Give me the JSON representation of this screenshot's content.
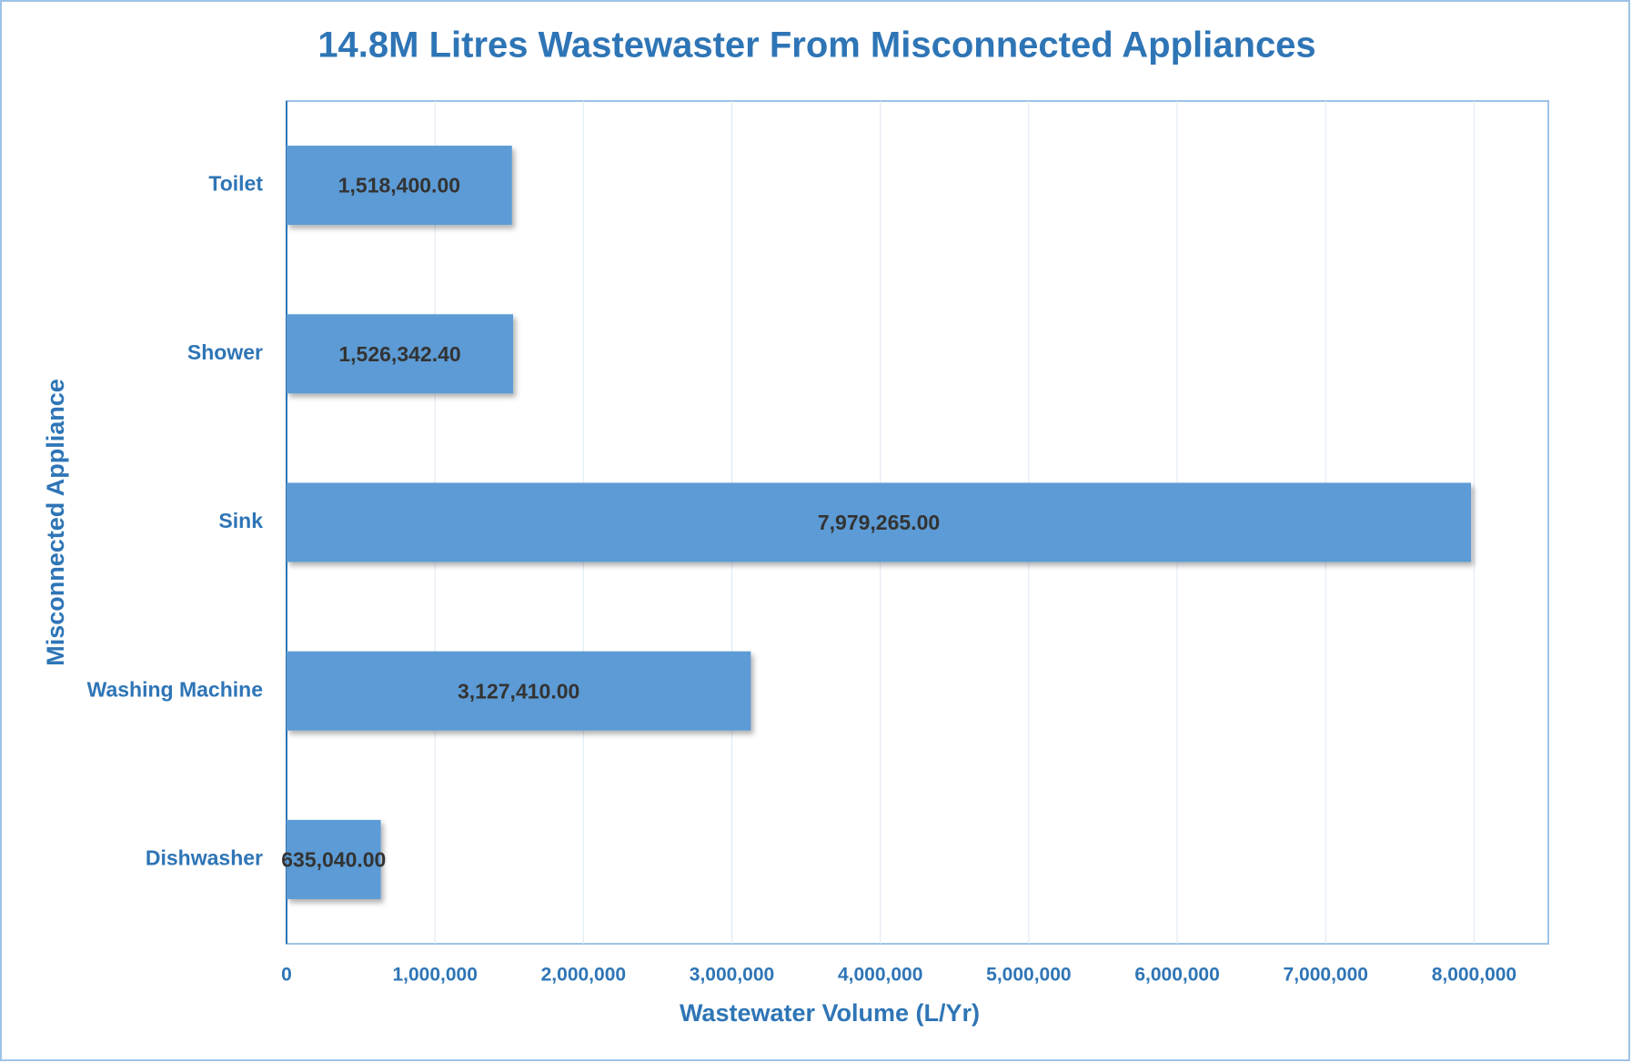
{
  "chart_data": {
    "type": "bar",
    "orientation": "horizontal",
    "title": "14.8M Litres Wastewaster From Misconnected Appliances",
    "x_label": "Wastewater Volume (L/Yr)",
    "y_label": "Misconnected Appliance",
    "categories": [
      "Toilet",
      "Shower",
      "Sink",
      "Washing Machine",
      "Dishwasher"
    ],
    "values": [
      1518400,
      1526342.4,
      7979265,
      3127410,
      635040
    ],
    "value_labels": [
      "1,518,400.00",
      "1,526,342.40",
      "7,979,265.00",
      "3,127,410.00",
      "635,040.00"
    ],
    "color": "#5b9bd5",
    "xlim": [
      0,
      8500000
    ],
    "xticks": [
      0,
      {
        "value": 1000000,
        "label": "1,000,000"
      },
      {
        "value": 2000000,
        "label": "2,000,000"
      },
      {
        "value": 3000000,
        "label": "3,000,000"
      },
      {
        "value": 4000000,
        "label": "4,000,000"
      },
      {
        "value": 5000000,
        "label": "5,000,000"
      },
      {
        "value": 6000000,
        "label": "6,000,000"
      },
      {
        "value": 7000000,
        "label": "7,000,000"
      },
      {
        "value": 8000000,
        "label": "8,000,000"
      }
    ],
    "grid": true
  }
}
